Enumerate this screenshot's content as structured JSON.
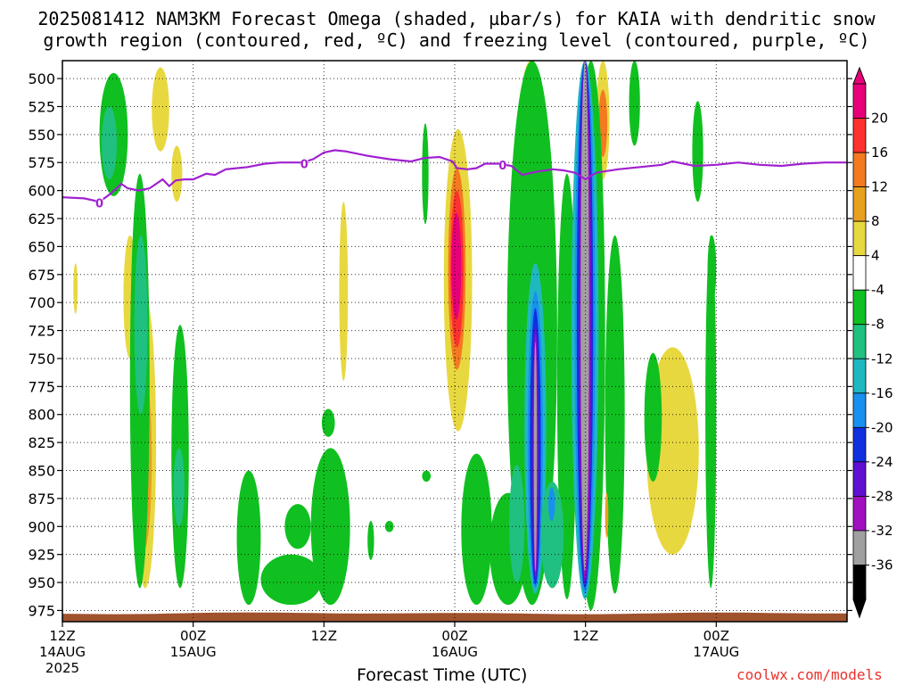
{
  "title": {
    "line1": "2025081412 NAM3KM Forecast Omega (shaded, µbar/s) for KAIA with dendritic snow",
    "line2": "growth region (contoured, red, ºC) and freezing level (contoured, purple, ºC)"
  },
  "x_axis_label": "Forecast Time (UTC)",
  "credit": "coolwx.com/models",
  "colors": {
    "ground": "#a0522d",
    "freezing_level": "#a020d0"
  },
  "chart_data": {
    "type": "heatmap",
    "title": "2025081412 NAM3KM Forecast Omega (shaded, µbar/s) for KAIA with dendritic snow growth region (contoured, red, ºC) and freezing level (contoured, purple, ºC)",
    "xlabel": "Forecast Time (UTC)",
    "ylabel": "",
    "x_range_hours": [
      0,
      36
    ],
    "x_ticks": [
      {
        "hour": 0,
        "label": "12Z",
        "sub": "14AUG",
        "sub2": "2025"
      },
      {
        "hour": 6,
        "label": "00Z",
        "sub": "15AUG",
        "sub2": ""
      },
      {
        "hour": 12,
        "label": "12Z",
        "sub": "",
        "sub2": ""
      },
      {
        "hour": 18,
        "label": "00Z",
        "sub": "16AUG",
        "sub2": ""
      },
      {
        "hour": 24,
        "label": "12Z",
        "sub": "",
        "sub2": ""
      },
      {
        "hour": 30,
        "label": "00Z",
        "sub": "17AUG",
        "sub2": ""
      }
    ],
    "y_range_hPa": [
      484,
      985
    ],
    "y_inverted": true,
    "y_ticks": [
      500,
      525,
      550,
      575,
      600,
      625,
      650,
      675,
      700,
      725,
      750,
      775,
      800,
      825,
      850,
      875,
      900,
      925,
      950,
      975
    ],
    "grid": true,
    "colorbar": {
      "labels": [
        "20",
        "16",
        "12",
        "8",
        "4",
        "-4",
        "-8",
        "-12",
        "-16",
        "-20",
        "-24",
        "-28",
        "-32",
        "-36"
      ],
      "colors": [
        "#e8007a",
        "#ff3030",
        "#f47a20",
        "#e8a020",
        "#e8d840",
        "#ffffff",
        "#10c020",
        "#20c080",
        "#20b8c0",
        "#1890f0",
        "#1030e0",
        "#6010d0",
        "#a010c0",
        "#a0a0a0",
        "#000000"
      ]
    },
    "freezing_level": [
      {
        "h": 0.0,
        "p": 606
      },
      {
        "h": 1.0,
        "p": 607
      },
      {
        "h": 1.7,
        "p": 610
      },
      {
        "h": 2.2,
        "p": 603
      },
      {
        "h": 2.7,
        "p": 594
      },
      {
        "h": 3.0,
        "p": 598
      },
      {
        "h": 3.5,
        "p": 600
      },
      {
        "h": 4.0,
        "p": 598
      },
      {
        "h": 4.3,
        "p": 594
      },
      {
        "h": 4.6,
        "p": 590
      },
      {
        "h": 4.9,
        "p": 596
      },
      {
        "h": 5.2,
        "p": 591
      },
      {
        "h": 5.6,
        "p": 590
      },
      {
        "h": 6.0,
        "p": 590
      },
      {
        "h": 6.6,
        "p": 585
      },
      {
        "h": 7.0,
        "p": 586
      },
      {
        "h": 7.5,
        "p": 581
      },
      {
        "h": 8.5,
        "p": 579
      },
      {
        "h": 9.3,
        "p": 576
      },
      {
        "h": 10.0,
        "p": 575
      },
      {
        "h": 11.0,
        "p": 575
      },
      {
        "h": 11.5,
        "p": 572
      },
      {
        "h": 12.0,
        "p": 566
      },
      {
        "h": 12.5,
        "p": 564
      },
      {
        "h": 13.0,
        "p": 565
      },
      {
        "h": 14.0,
        "p": 569
      },
      {
        "h": 15.0,
        "p": 572
      },
      {
        "h": 16.0,
        "p": 574
      },
      {
        "h": 16.6,
        "p": 571
      },
      {
        "h": 17.3,
        "p": 570
      },
      {
        "h": 17.9,
        "p": 574
      },
      {
        "h": 18.1,
        "p": 580
      },
      {
        "h": 18.6,
        "p": 581
      },
      {
        "h": 19.0,
        "p": 580
      },
      {
        "h": 19.4,
        "p": 576
      },
      {
        "h": 20.0,
        "p": 576
      },
      {
        "h": 20.6,
        "p": 578
      },
      {
        "h": 21.1,
        "p": 586
      },
      {
        "h": 21.8,
        "p": 583
      },
      {
        "h": 22.5,
        "p": 581
      },
      {
        "h": 23.0,
        "p": 582
      },
      {
        "h": 23.5,
        "p": 584
      },
      {
        "h": 24.0,
        "p": 590
      },
      {
        "h": 24.5,
        "p": 584
      },
      {
        "h": 25.5,
        "p": 581
      },
      {
        "h": 26.5,
        "p": 579
      },
      {
        "h": 27.5,
        "p": 577
      },
      {
        "h": 28.0,
        "p": 574
      },
      {
        "h": 28.5,
        "p": 576
      },
      {
        "h": 29.0,
        "p": 578
      },
      {
        "h": 30.0,
        "p": 577
      },
      {
        "h": 31.0,
        "p": 575
      },
      {
        "h": 32.0,
        "p": 577
      },
      {
        "h": 33.0,
        "p": 578
      },
      {
        "h": 34.0,
        "p": 576
      },
      {
        "h": 35.0,
        "p": 575
      },
      {
        "h": 36.0,
        "p": 575
      }
    ],
    "freezing_level_labels": [
      {
        "h": 1.7,
        "p": 611,
        "text": "0"
      },
      {
        "h": 11.1,
        "p": 576,
        "text": "0"
      },
      {
        "h": 20.2,
        "p": 577,
        "text": "0"
      }
    ],
    "omega_regions": [
      {
        "cls": "yellow",
        "h": [
          4.1,
          4.9
        ],
        "p": [
          490,
          565
        ],
        "v": 5
      },
      {
        "cls": "yellow",
        "h": [
          5.0,
          5.5
        ],
        "p": [
          560,
          610
        ],
        "v": 5
      },
      {
        "cls": "yellow",
        "h": [
          0.5,
          0.7
        ],
        "p": [
          665,
          710
        ],
        "v": 5
      },
      {
        "cls": "yellow",
        "h": [
          2.8,
          3.4
        ],
        "p": [
          640,
          750
        ],
        "v": 5
      },
      {
        "cls": "yellow",
        "h": [
          3.3,
          4.3
        ],
        "p": [
          695,
          955
        ],
        "v": 6
      },
      {
        "cls": "orange",
        "h": [
          3.4,
          4.1
        ],
        "p": [
          760,
          920
        ],
        "v": 10
      },
      {
        "cls": "yellow",
        "h": [
          12.7,
          13.1
        ],
        "p": [
          610,
          770
        ],
        "v": 5
      },
      {
        "cls": "yellow",
        "h": [
          17.5,
          18.8
        ],
        "p": [
          545,
          815
        ],
        "v": 6
      },
      {
        "cls": "orange",
        "h": [
          17.7,
          18.5
        ],
        "p": [
          580,
          760
        ],
        "v": 12
      },
      {
        "cls": "red",
        "h": [
          17.8,
          18.4
        ],
        "p": [
          600,
          740
        ],
        "v": 16
      },
      {
        "cls": "magenta",
        "h": [
          17.85,
          18.3
        ],
        "p": [
          620,
          715
        ],
        "v": 20
      },
      {
        "cls": "yellow",
        "h": [
          21.1,
          21.9
        ],
        "p": [
          484,
          545
        ],
        "v": 6
      },
      {
        "cls": "orange",
        "h": [
          21.3,
          21.8
        ],
        "p": [
          484,
          520
        ],
        "v": 10
      },
      {
        "cls": "yellow",
        "h": [
          24.5,
          25.1
        ],
        "p": [
          484,
          590
        ],
        "v": 6
      },
      {
        "cls": "orange",
        "h": [
          24.6,
          25.0
        ],
        "p": [
          510,
          570
        ],
        "v": 12
      },
      {
        "cls": "yellow",
        "h": [
          26.8,
          29.2
        ],
        "p": [
          740,
          925
        ],
        "v": 6
      },
      {
        "cls": "green",
        "h": [
          1.7,
          3.0
        ],
        "p": [
          495,
          605
        ],
        "v": -6
      },
      {
        "cls": "teal",
        "h": [
          1.8,
          2.5
        ],
        "p": [
          525,
          590
        ],
        "v": -10
      },
      {
        "cls": "green",
        "h": [
          3.1,
          4.0
        ],
        "p": [
          585,
          955
        ],
        "v": -6
      },
      {
        "cls": "teal",
        "h": [
          3.3,
          3.9
        ],
        "p": [
          640,
          800
        ],
        "v": -10
      },
      {
        "cls": "green",
        "h": [
          5.0,
          5.8
        ],
        "p": [
          720,
          955
        ],
        "v": -6
      },
      {
        "cls": "teal",
        "h": [
          5.1,
          5.6
        ],
        "p": [
          830,
          900
        ],
        "v": -10
      },
      {
        "cls": "green",
        "h": [
          8.0,
          9.1
        ],
        "p": [
          850,
          970
        ],
        "v": -6
      },
      {
        "cls": "green",
        "h": [
          9.1,
          11.9
        ],
        "p": [
          925,
          970
        ],
        "v": -5
      },
      {
        "cls": "green",
        "h": [
          10.2,
          11.4
        ],
        "p": [
          880,
          920
        ],
        "v": -5
      },
      {
        "cls": "green",
        "h": [
          11.4,
          13.2
        ],
        "p": [
          830,
          970
        ],
        "v": -6
      },
      {
        "cls": "green",
        "h": [
          11.9,
          12.5
        ],
        "p": [
          795,
          820
        ],
        "v": -5
      },
      {
        "cls": "green",
        "h": [
          14.0,
          14.3
        ],
        "p": [
          895,
          930
        ],
        "v": -5
      },
      {
        "cls": "green",
        "h": [
          14.8,
          15.2
        ],
        "p": [
          895,
          905
        ],
        "v": -5
      },
      {
        "cls": "green",
        "h": [
          16.5,
          16.8
        ],
        "p": [
          540,
          630
        ],
        "v": -5
      },
      {
        "cls": "green",
        "h": [
          16.5,
          16.9
        ],
        "p": [
          850,
          860
        ],
        "v": -5
      },
      {
        "cls": "green",
        "h": [
          18.3,
          19.7
        ],
        "p": [
          835,
          970
        ],
        "v": -6
      },
      {
        "cls": "green",
        "h": [
          19.6,
          21.3
        ],
        "p": [
          870,
          970
        ],
        "v": -6
      },
      {
        "cls": "green",
        "h": [
          20.4,
          22.7
        ],
        "p": [
          484,
          970
        ],
        "v": -7
      },
      {
        "cls": "teal",
        "h": [
          20.5,
          21.2
        ],
        "p": [
          845,
          950
        ],
        "v": -10
      },
      {
        "cls": "green",
        "h": [
          22.7,
          23.6
        ],
        "p": [
          585,
          965
        ],
        "v": -6
      },
      {
        "cls": "green",
        "h": [
          23.6,
          24.9
        ],
        "p": [
          484,
          975
        ],
        "v": -8
      },
      {
        "cls": "green",
        "h": [
          24.9,
          25.8
        ],
        "p": [
          640,
          960
        ],
        "v": -6
      },
      {
        "cls": "green",
        "h": [
          26.0,
          26.5
        ],
        "p": [
          484,
          560
        ],
        "v": -5
      },
      {
        "cls": "green",
        "h": [
          26.7,
          27.5
        ],
        "p": [
          745,
          860
        ],
        "v": -5
      },
      {
        "cls": "green",
        "h": [
          28.9,
          29.4
        ],
        "p": [
          520,
          610
        ],
        "v": -5
      },
      {
        "cls": "green",
        "h": [
          29.5,
          30.0
        ],
        "p": [
          640,
          955
        ],
        "v": -6
      },
      {
        "cls": "green",
        "h": [
          29.6,
          30.0
        ],
        "p": [
          640,
          700
        ],
        "v": -5
      },
      {
        "cls": "cyan",
        "h": [
          21.2,
          22.2
        ],
        "p": [
          665,
          960
        ],
        "v": -14
      },
      {
        "cls": "blue",
        "h": [
          21.35,
          22.05
        ],
        "p": [
          690,
          955
        ],
        "v": -18
      },
      {
        "cls": "navy",
        "h": [
          21.45,
          21.95
        ],
        "p": [
          705,
          952
        ],
        "v": -22
      },
      {
        "cls": "purple",
        "h": [
          21.55,
          21.85
        ],
        "p": [
          720,
          948
        ],
        "v": -26
      },
      {
        "cls": "violet",
        "h": [
          21.6,
          21.82
        ],
        "p": [
          728,
          945
        ],
        "v": -30
      },
      {
        "cls": "black",
        "h": [
          21.63,
          21.77
        ],
        "p": [
          735,
          940
        ],
        "v": -36
      },
      {
        "cls": "cyan",
        "h": [
          21.95,
          23.0
        ],
        "p": [
          860,
          955
        ],
        "v": -12
      },
      {
        "cls": "blue",
        "h": [
          22.3,
          22.6
        ],
        "p": [
          865,
          895
        ],
        "v": -18
      },
      {
        "cls": "cyan",
        "h": [
          23.35,
          24.6
        ],
        "p": [
          484,
          965
        ],
        "v": -14
      },
      {
        "cls": "blue",
        "h": [
          23.5,
          24.45
        ],
        "p": [
          484,
          960
        ],
        "v": -18
      },
      {
        "cls": "navy",
        "h": [
          23.6,
          24.35
        ],
        "p": [
          484,
          955
        ],
        "v": -22
      },
      {
        "cls": "purple",
        "h": [
          23.68,
          24.28
        ],
        "p": [
          484,
          952
        ],
        "v": -26
      },
      {
        "cls": "violet",
        "h": [
          23.74,
          24.22
        ],
        "p": [
          484,
          948
        ],
        "v": -30
      },
      {
        "cls": "black",
        "h": [
          23.78,
          24.16
        ],
        "p": [
          484,
          940
        ],
        "v": -36
      },
      {
        "cls": "orange",
        "h": [
          24.9,
          25.05
        ],
        "p": [
          870,
          910
        ],
        "v": 10
      }
    ]
  }
}
